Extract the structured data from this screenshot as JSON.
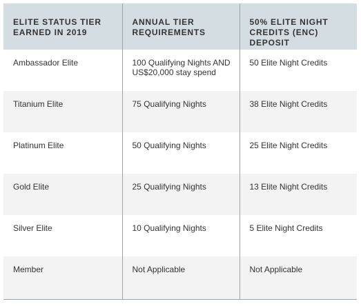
{
  "table": {
    "headers": [
      "ELITE STATUS TIER EARNED IN 2019",
      "ANNUAL TIER REQUIREMENTS",
      "50% ELITE NIGHT CREDITS (ENC) DEPOSIT"
    ],
    "rows": [
      [
        "Ambassador Elite",
        "100 Qualifying Nights AND US$20,000 stay spend",
        "50 Elite Night Credits"
      ],
      [
        "Titanium Elite",
        "75 Qualifying Nights",
        "38 Elite Night Credits"
      ],
      [
        "Platinum Elite",
        "50 Qualifying Nights",
        "25 Elite Night Credits"
      ],
      [
        "Gold Elite",
        "25 Qualifying Nights",
        "13 Elite Night Credits"
      ],
      [
        "Silver Elite",
        "10 Qualifying Nights",
        "5 Elite Night Credits"
      ],
      [
        "Member",
        "Not Applicable",
        "Not Applicable"
      ]
    ]
  }
}
